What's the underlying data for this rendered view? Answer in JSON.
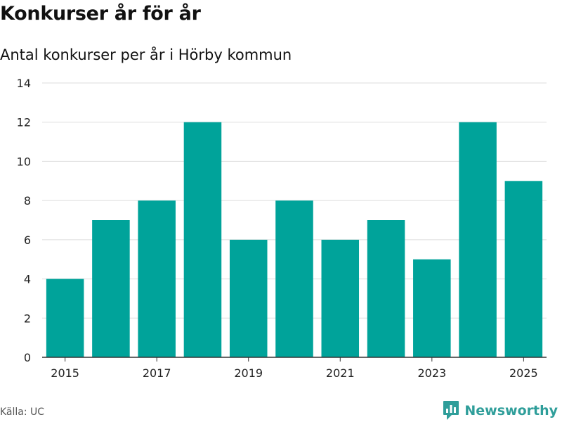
{
  "header": {
    "title": "Konkurser år för år",
    "subtitle": "Antal konkurser per år i Hörby kommun"
  },
  "footer": {
    "source": "Källa: UC",
    "brand": "Newsworthy"
  },
  "colors": {
    "bar": "#00a39a",
    "grid": "#dddddd",
    "axis": "#333333",
    "brand": "#2f9e9a"
  },
  "chart_data": {
    "type": "bar",
    "title": "Konkurser år för år",
    "subtitle": "Antal konkurser per år i Hörby kommun",
    "xlabel": "",
    "ylabel": "",
    "categories": [
      "2015",
      "2016",
      "2017",
      "2018",
      "2019",
      "2020",
      "2021",
      "2022",
      "2023",
      "2024",
      "2025"
    ],
    "values": [
      4,
      7,
      8,
      12,
      6,
      8,
      6,
      7,
      5,
      12,
      9
    ],
    "ylim": [
      0,
      14
    ],
    "yticks": [
      0,
      2,
      4,
      6,
      8,
      10,
      12,
      14
    ],
    "xticks": [
      "2015",
      "2017",
      "2019",
      "2021",
      "2023",
      "2025"
    ],
    "grid": true
  }
}
